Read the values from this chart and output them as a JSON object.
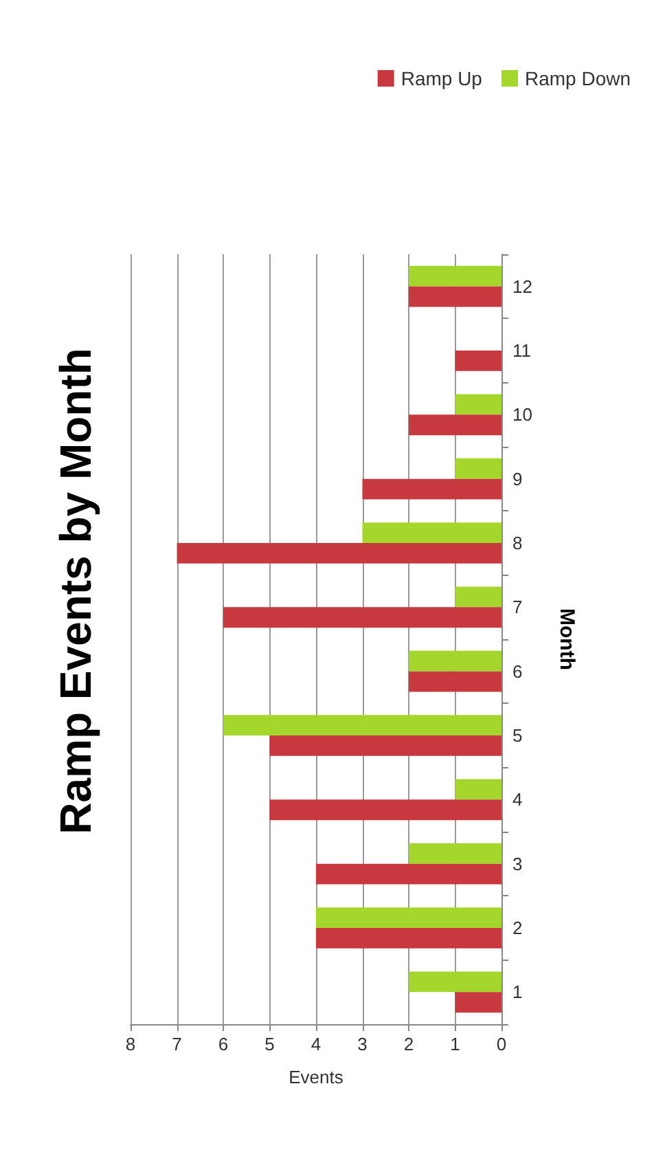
{
  "chart_data": {
    "type": "bar",
    "orientation": "horizontal",
    "title": "Ramp Events by Month",
    "xlabel": "Events",
    "ylabel": "Month",
    "categories": [
      "12",
      "11",
      "10",
      "9",
      "8",
      "7",
      "6",
      "5",
      "4",
      "3",
      "2",
      "1"
    ],
    "series": [
      {
        "name": "Ramp Up",
        "color": "#c8393f",
        "values": [
          2,
          1,
          2,
          3,
          7,
          6,
          2,
          5,
          5,
          4,
          4,
          1
        ]
      },
      {
        "name": "Ramp Down",
        "color": "#a4d62b",
        "values": [
          2,
          0,
          1,
          1,
          3,
          1,
          2,
          6,
          1,
          2,
          4,
          2
        ]
      }
    ],
    "xlim": [
      8,
      0
    ],
    "xticks": [
      8,
      7,
      6,
      5,
      4,
      3,
      2,
      1,
      0
    ],
    "grid": "x",
    "legend": "top right"
  }
}
